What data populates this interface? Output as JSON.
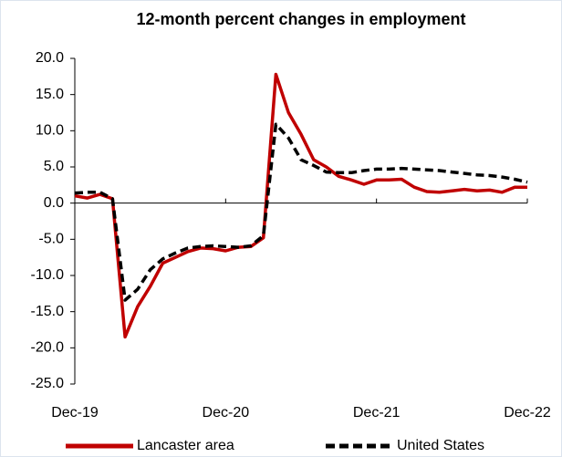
{
  "chart_data": {
    "type": "line",
    "title": "12-month percent changes in employment",
    "categories": [
      "Dec-19",
      null,
      null,
      null,
      null,
      null,
      null,
      null,
      null,
      null,
      null,
      null,
      "Dec-20",
      null,
      null,
      null,
      null,
      null,
      null,
      null,
      null,
      null,
      null,
      null,
      "Dec-21",
      null,
      null,
      null,
      null,
      null,
      null,
      null,
      null,
      null,
      null,
      null,
      "Dec-22"
    ],
    "series": [
      {
        "name": "Lancaster area",
        "color": "#c00000",
        "dash": false,
        "values": [
          1.0,
          0.7,
          1.2,
          0.6,
          -18.5,
          -14.3,
          -11.5,
          -8.3,
          -7.5,
          -6.7,
          -6.2,
          -6.3,
          -6.6,
          -6.1,
          -6.0,
          -4.8,
          17.8,
          12.5,
          9.5,
          6.0,
          5.0,
          3.7,
          3.2,
          2.6,
          3.2,
          3.2,
          3.3,
          2.2,
          1.6,
          1.5,
          1.7,
          1.9,
          1.7,
          1.8,
          1.5,
          2.2,
          2.2
        ]
      },
      {
        "name": "United States",
        "color": "#000000",
        "dash": true,
        "values": [
          1.4,
          1.5,
          1.5,
          0.6,
          -13.4,
          -11.9,
          -9.2,
          -7.7,
          -6.9,
          -6.2,
          -6.0,
          -5.9,
          -6.0,
          -6.1,
          -5.9,
          -4.5,
          10.9,
          9.0,
          6.0,
          5.2,
          4.3,
          4.2,
          4.2,
          4.5,
          4.7,
          4.7,
          4.8,
          4.7,
          4.6,
          4.5,
          4.3,
          4.1,
          3.9,
          3.8,
          3.6,
          3.3,
          2.9
        ]
      }
    ],
    "ylim": [
      -25,
      20
    ],
    "yticks": [
      {
        "value": -25,
        "label": "-25.0"
      },
      {
        "value": -20,
        "label": "-20.0"
      },
      {
        "value": -15,
        "label": "-15.0"
      },
      {
        "value": -10,
        "label": "-10.0"
      },
      {
        "value": -5,
        "label": "-5.0"
      },
      {
        "value": 0,
        "label": "0.0"
      },
      {
        "value": 5,
        "label": "5.0"
      },
      {
        "value": 10,
        "label": "10.0"
      },
      {
        "value": 15,
        "label": "15.0"
      },
      {
        "value": 20,
        "label": "20.0"
      }
    ],
    "grid": false,
    "legend": "bottom"
  }
}
